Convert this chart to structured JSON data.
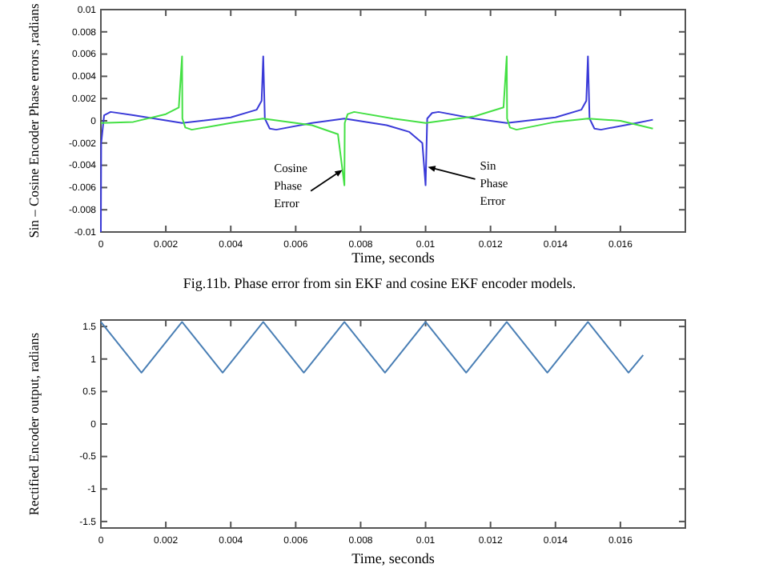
{
  "chart_data": [
    {
      "type": "line",
      "xlabel": "Time, seconds",
      "ylabel": "Sin – Cosine  Encoder Phase errors ,radians",
      "xlim": [
        0,
        0.018
      ],
      "ylim": [
        -0.01,
        0.01
      ],
      "xticks": [
        0,
        0.002,
        0.004,
        0.006,
        0.008,
        0.01,
        0.012,
        0.014,
        0.016
      ],
      "yticks": [
        -0.01,
        -0.008,
        -0.006,
        -0.004,
        -0.002,
        0,
        0.002,
        0.004,
        0.006,
        0.008,
        0.01
      ],
      "grid": false,
      "marker": "none",
      "line_style": "solid",
      "series": [
        {
          "color": "#3a3ad8",
          "x": [
            0,
            1e-05,
            0.0001,
            0.0003,
            0.001,
            0.0025,
            0.004,
            0.0048,
            0.00495,
            0.005,
            0.00505,
            0.0052,
            0.0054,
            0.0065,
            0.0075,
            0.0088,
            0.0095,
            0.0099,
            0.01,
            0.01005,
            0.0102,
            0.0104,
            0.0115,
            0.0125,
            0.014,
            0.0148,
            0.01495,
            0.015,
            0.01505,
            0.0152,
            0.0154,
            0.0165,
            0.017
          ],
          "values": [
            -0.01,
            -0.002,
            0.0005,
            0.0008,
            0.0005,
            -0.0002,
            0.0003,
            0.001,
            0.0018,
            0.0058,
            0.0002,
            -0.0007,
            -0.0008,
            -0.0002,
            0.0002,
            -0.0004,
            -0.001,
            -0.002,
            -0.0058,
            0.0002,
            0.0007,
            0.0008,
            0.0002,
            -0.0002,
            0.0003,
            0.001,
            0.0018,
            0.0058,
            0.0002,
            -0.0007,
            -0.0008,
            -0.0002,
            0.0001
          ]
        },
        {
          "color": "#44e044",
          "x": [
            0,
            0.001,
            0.002,
            0.0024,
            0.0025,
            0.00251,
            0.0026,
            0.0028,
            0.004,
            0.005,
            0.0065,
            0.0073,
            0.0075,
            0.00751,
            0.0076,
            0.0078,
            0.009,
            0.01,
            0.0115,
            0.0124,
            0.0125,
            0.01251,
            0.0126,
            0.0128,
            0.014,
            0.015,
            0.016,
            0.017
          ],
          "values": [
            -0.0002,
            -0.0001,
            0.0006,
            0.0012,
            0.0058,
            0.0002,
            -0.0006,
            -0.0008,
            -0.0002,
            0.0002,
            -0.0004,
            -0.0012,
            -0.0058,
            -0.0002,
            0.0006,
            0.0008,
            0.0002,
            -0.0002,
            0.0004,
            0.0012,
            0.0058,
            0.0002,
            -0.0006,
            -0.0008,
            -0.0001,
            0.0002,
            0,
            -0.0007
          ]
        }
      ],
      "annotations": [
        {
          "text": "Cosine Phase Error",
          "x": 0.0075,
          "y": -0.0043
        },
        {
          "text": "Sin Phase Error",
          "x": 0.01,
          "y": -0.0041
        },
        "Fig.11b. Phase error from sin EKF and cosine EKF encoder models."
      ]
    },
    {
      "type": "line",
      "xlabel": "Time, seconds",
      "ylabel": "Rectified Encoder output, radians",
      "xlim": [
        0,
        0.018
      ],
      "ylim": [
        -1.6,
        1.6
      ],
      "xticks": [
        0,
        0.002,
        0.004,
        0.006,
        0.008,
        0.01,
        0.012,
        0.014,
        0.016
      ],
      "yticks": [
        -1.5,
        -1,
        -0.5,
        0,
        0.5,
        1,
        1.5
      ],
      "grid": false,
      "marker": "none",
      "line_style": "solid",
      "series": [
        {
          "color": "#4a7fb5",
          "x": [
            0,
            0.00125,
            0.0025,
            0.00375,
            0.005,
            0.00625,
            0.0075,
            0.00875,
            0.01,
            0.01125,
            0.0125,
            0.01375,
            0.015,
            0.01625,
            0.0167
          ],
          "values": [
            1.57,
            0.79,
            1.57,
            0.79,
            1.57,
            0.79,
            1.57,
            0.79,
            1.57,
            0.79,
            1.57,
            0.79,
            1.57,
            0.79,
            1.06
          ]
        }
      ]
    }
  ]
}
